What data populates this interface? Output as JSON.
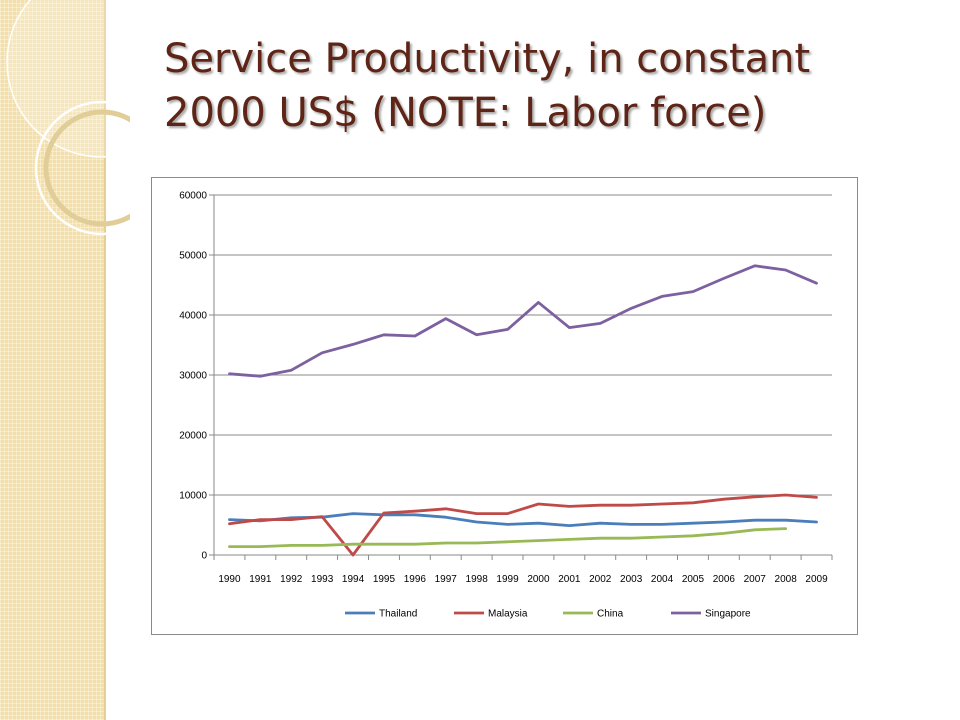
{
  "slide": {
    "title": "Service Productivity, in constant 2000 US$ (NOTE: Labor force)"
  },
  "colors": {
    "sidebar": "#f3dfab",
    "title": "#5e2416",
    "gridline": "#8a8a8a"
  },
  "chart_data": {
    "type": "line",
    "title": "",
    "xlabel": "",
    "ylabel": "",
    "ylim": [
      0,
      60000
    ],
    "yticks": [
      0,
      10000,
      20000,
      30000,
      40000,
      50000,
      60000
    ],
    "grid": true,
    "legend_position": "bottom",
    "x": [
      "1990",
      "1991",
      "1992",
      "1993",
      "1994",
      "1995",
      "1996",
      "1997",
      "1998",
      "1999",
      "2000",
      "2001",
      "2002",
      "2003",
      "2004",
      "2005",
      "2006",
      "2007",
      "2008",
      "2009"
    ],
    "series": [
      {
        "name": "Thailand",
        "color": "#4a7ebb",
        "values": [
          5900,
          5700,
          6200,
          6300,
          6900,
          6700,
          6700,
          6300,
          5500,
          5100,
          5300,
          4900,
          5300,
          5100,
          5100,
          5300,
          5500,
          5800,
          5800,
          5500
        ]
      },
      {
        "name": "Malaysia",
        "color": "#be4b48",
        "values": [
          5200,
          5900,
          5900,
          6400,
          0,
          7000,
          7300,
          7700,
          6900,
          6900,
          8500,
          8100,
          8300,
          8300,
          8500,
          8700,
          9300,
          9700,
          10000,
          9600
        ]
      },
      {
        "name": "China",
        "color": "#98b954",
        "values": [
          1400,
          1400,
          1600,
          1600,
          1800,
          1800,
          1800,
          2000,
          2000,
          2200,
          2400,
          2600,
          2800,
          2800,
          3000,
          3200,
          3600,
          4200,
          4400,
          null
        ]
      },
      {
        "name": "Singapore",
        "color": "#7d60a0",
        "values": [
          30200,
          29800,
          30800,
          33700,
          35100,
          36700,
          36500,
          39400,
          36700,
          37600,
          42100,
          37900,
          38600,
          41100,
          43100,
          43900,
          46100,
          48200,
          47500,
          45300
        ]
      }
    ]
  }
}
